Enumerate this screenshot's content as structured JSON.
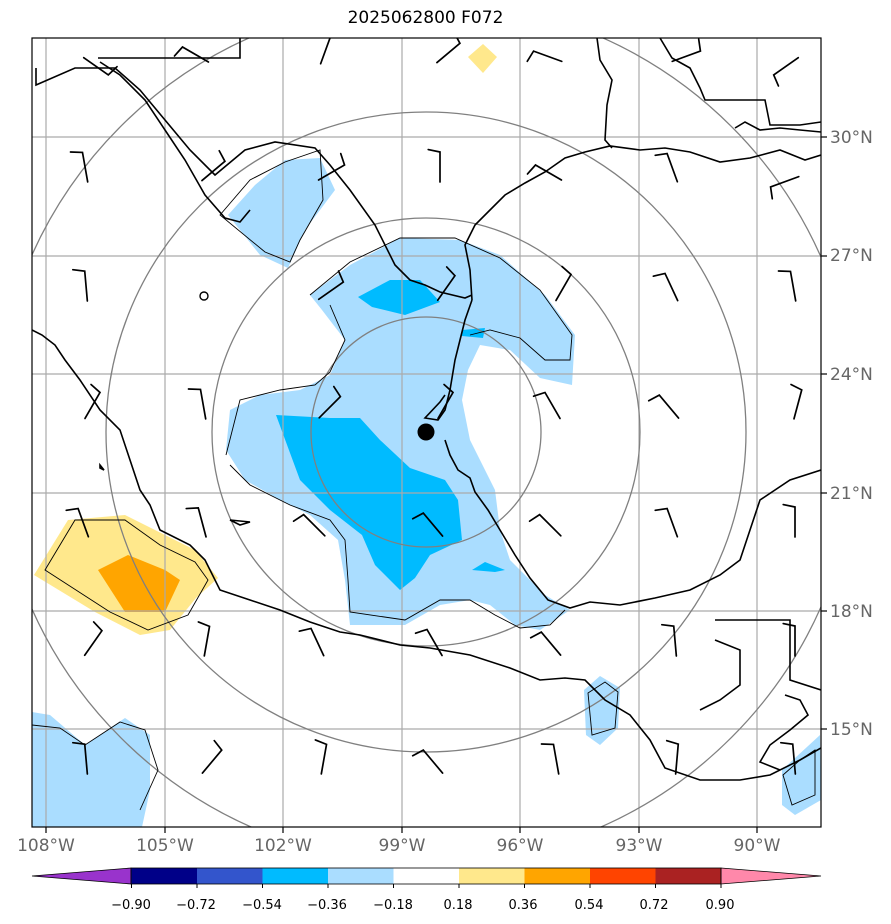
{
  "title": "2025062800 F072",
  "center_marker": "filled-circle",
  "lon_labels": [
    "108°W",
    "105°W",
    "102°W",
    "99°W",
    "96°W",
    "93°W",
    "90°W"
  ],
  "lat_labels": [
    "30°N",
    "27°N",
    "24°N",
    "21°N",
    "18°N",
    "15°N"
  ],
  "colorbar": {
    "ticks": [
      "−0.90",
      "−0.72",
      "−0.54",
      "−0.36",
      "−0.18",
      "0.18",
      "0.36",
      "0.54",
      "0.72",
      "0.90"
    ],
    "colors": [
      "#9933cc",
      "#000088",
      "#3355cc",
      "#00bbff",
      "#aaddff",
      "#ffffff",
      "#ffe88c",
      "#ffa500",
      "#ff4400",
      "#aa2222",
      "#ff88aa"
    ]
  },
  "colors": {
    "light_blue": "#aaddff",
    "medium_blue": "#00bbff",
    "light_yellow": "#ffe88c",
    "orange": "#ffa500",
    "grid": "#aaaaaa",
    "range_rings": "#808080",
    "coastline": "#000000"
  },
  "icons": [
    "wind-barb-icon",
    "storm-center-icon"
  ]
}
